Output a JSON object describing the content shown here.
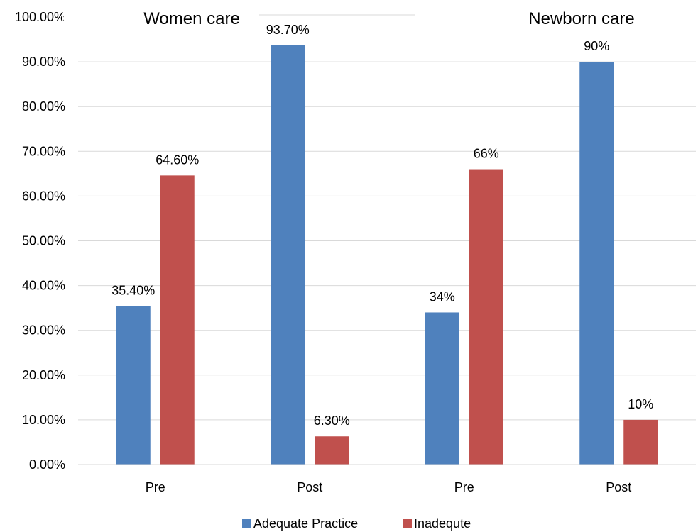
{
  "chart_data": {
    "type": "bar",
    "group_titles": [
      "Women care",
      "Newborn care"
    ],
    "categories": [
      "Pre",
      "Post",
      "Pre",
      "Post"
    ],
    "series": [
      {
        "name": "Adequate Practice",
        "color": "#4F81BD",
        "values": [
          35.4,
          93.7,
          34,
          90
        ],
        "labels": [
          "35.40%",
          "93.70%",
          "34%",
          "90%"
        ]
      },
      {
        "name": "Inadequte",
        "color": "#C0504D",
        "values": [
          64.6,
          6.3,
          66,
          10
        ],
        "labels": [
          "64.60%",
          "6.30%",
          "66%",
          "10%"
        ]
      }
    ],
    "y_ticks": [
      "0.00%",
      "10.00%",
      "20.00%",
      "30.00%",
      "40.00%",
      "50.00%",
      "60.00%",
      "70.00%",
      "80.00%",
      "90.00%",
      "100.00%"
    ],
    "ylim": [
      0,
      100
    ],
    "grid": true,
    "legend_position": "bottom"
  }
}
